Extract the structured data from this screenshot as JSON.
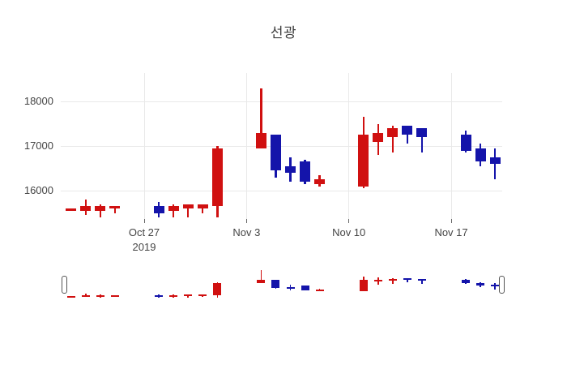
{
  "title": "선광",
  "colors": {
    "increasing": "#d01010",
    "decreasing": "#1414aa",
    "grid": "#e9e9e9",
    "axis_text": "#444444",
    "background": "#ffffff"
  },
  "y_axis": {
    "tick_labels": [
      "18000",
      "17000",
      "16000"
    ],
    "tick_values": [
      18000,
      17000,
      16000
    ]
  },
  "x_axis": {
    "ticks": [
      {
        "label": "Oct 27",
        "sub_label": "2019",
        "date": "2019-10-27"
      },
      {
        "label": "Nov 3",
        "sub_label": "",
        "date": "2019-11-03"
      },
      {
        "label": "Nov 10",
        "sub_label": "",
        "date": "2019-11-10"
      },
      {
        "label": "Nov 17",
        "sub_label": "",
        "date": "2019-11-17"
      }
    ]
  },
  "range_slider": {
    "visible": true
  },
  "chart_data": {
    "type": "candlestick",
    "title": "선광",
    "x": [
      "2019-10-22",
      "2019-10-23",
      "2019-10-24",
      "2019-10-25",
      "2019-10-28",
      "2019-10-29",
      "2019-10-30",
      "2019-10-31",
      "2019-11-01",
      "2019-11-04",
      "2019-11-05",
      "2019-11-06",
      "2019-11-07",
      "2019-11-08",
      "2019-11-11",
      "2019-11-12",
      "2019-11-13",
      "2019-11-14",
      "2019-11-15",
      "2019-11-18",
      "2019-11-19",
      "2019-11-20"
    ],
    "open": [
      15550,
      15550,
      15550,
      15600,
      15650,
      15550,
      15600,
      15600,
      15650,
      16950,
      17250,
      16550,
      16650,
      16150,
      16100,
      17100,
      17200,
      17450,
      17400,
      17250,
      16950,
      16750
    ],
    "high": [
      15600,
      15800,
      15700,
      15650,
      15750,
      15700,
      15700,
      15700,
      17000,
      18300,
      17250,
      16750,
      16700,
      16350,
      17650,
      17500,
      17450,
      17450,
      17400,
      17350,
      17050,
      16950
    ],
    "low": [
      15550,
      15450,
      15400,
      15500,
      15400,
      15400,
      15400,
      15500,
      15400,
      16950,
      16300,
      16200,
      16150,
      16100,
      16050,
      16800,
      16850,
      17050,
      16850,
      16850,
      16550,
      16250
    ],
    "close": [
      15600,
      15650,
      15650,
      15650,
      15500,
      15650,
      15700,
      15700,
      16950,
      17300,
      16450,
      16400,
      16200,
      16250,
      17250,
      17300,
      17400,
      17250,
      17200,
      16900,
      16650,
      16600
    ],
    "increasing_color": "#d01010",
    "decreasing_color": "#1414aa",
    "ylim": [
      15360,
      18640
    ],
    "grid": true,
    "legend": false,
    "rangeslider": true
  }
}
